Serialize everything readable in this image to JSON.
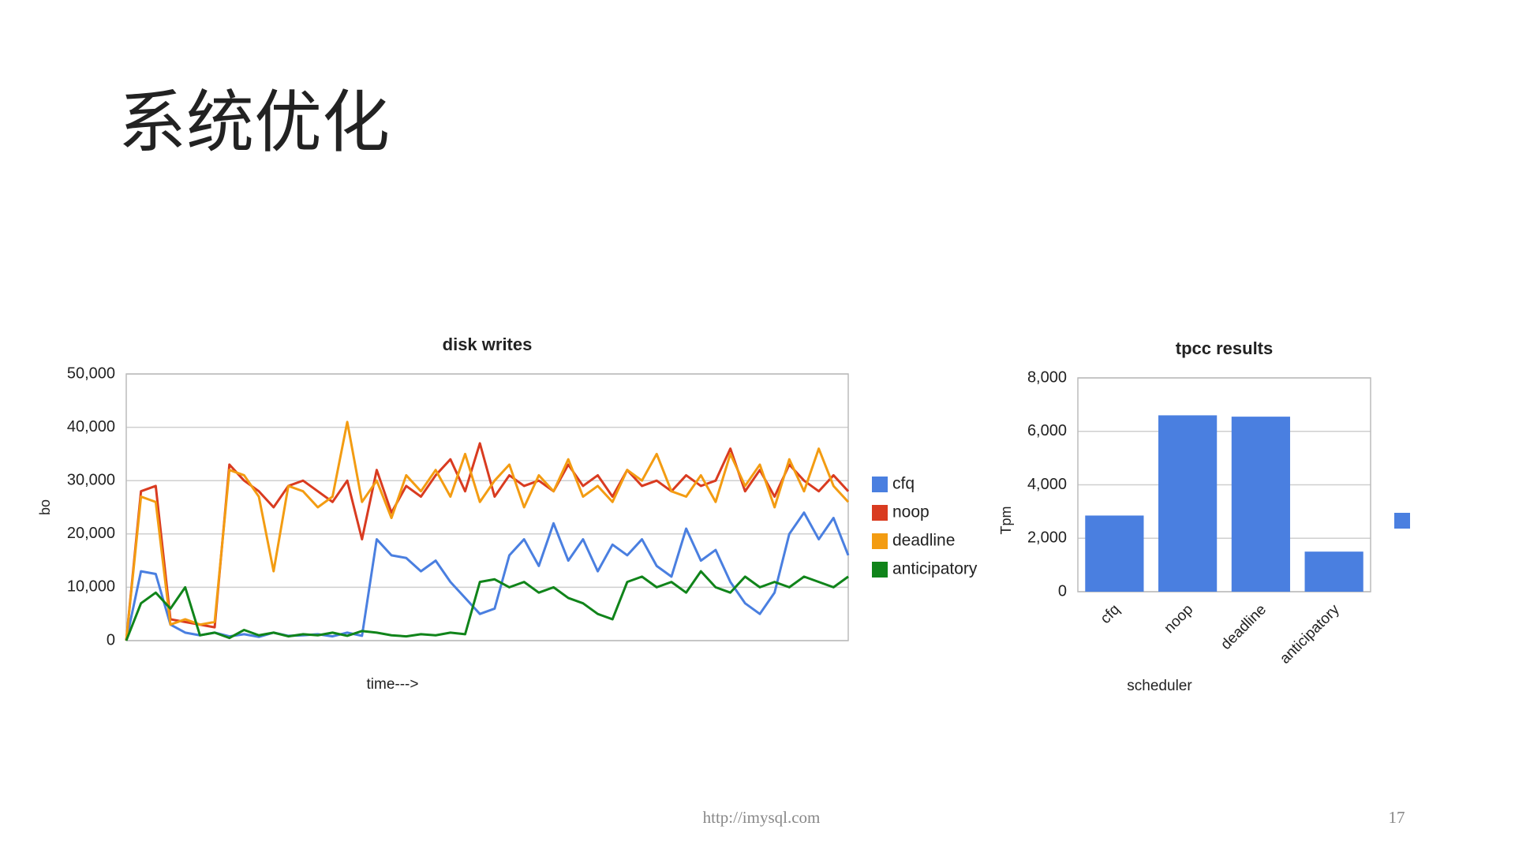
{
  "header": {
    "title": "系统优化"
  },
  "footer": {
    "url": "http://imysql.com",
    "page": "17"
  },
  "chart_data": [
    {
      "type": "line",
      "title": "disk writes",
      "x_label": "time--->",
      "y_label": "bo",
      "categories": [
        null,
        null,
        null,
        null,
        null,
        null,
        null,
        null,
        null,
        null,
        null,
        null,
        null,
        null,
        null,
        null,
        null,
        null,
        null,
        null,
        null,
        null,
        null,
        null,
        null,
        null,
        null,
        null,
        null,
        null,
        null,
        null,
        null,
        null,
        null,
        null,
        null,
        null,
        null,
        null,
        null,
        null,
        null,
        null,
        null,
        null,
        null,
        null,
        null,
        null
      ],
      "ylim": [
        0,
        50000
      ],
      "yticks": [
        0,
        {
          "value": 10000,
          "label": "10,000"
        },
        {
          "value": 20000,
          "label": "20,000"
        },
        {
          "value": 30000,
          "label": "30,000"
        },
        {
          "value": 40000,
          "label": "40,000"
        },
        {
          "value": 50000,
          "label": "50,000"
        }
      ],
      "grid": true,
      "legend": "right",
      "series": [
        {
          "name": "cfq",
          "color": "#4a7fe0",
          "values": [
            0,
            13000,
            12500,
            3000,
            1500,
            1000,
            1500,
            800,
            1200,
            700,
            1500,
            900,
            1000,
            1200,
            800,
            1500,
            900,
            19000,
            16000,
            15500,
            13000,
            15000,
            11000,
            8000,
            5000,
            6000,
            16000,
            19000,
            14000,
            22000,
            15000,
            19000,
            13000,
            18000,
            16000,
            19000,
            14000,
            12000,
            21000,
            15000,
            17000,
            11000,
            7000,
            5000,
            9000,
            20000,
            24000,
            19000,
            23000,
            16000
          ]
        },
        {
          "name": "noop",
          "color": "#d93b20",
          "values": [
            0,
            28000,
            29000,
            4000,
            3500,
            3000,
            2500,
            33000,
            30000,
            28000,
            25000,
            29000,
            30000,
            28000,
            26000,
            30000,
            19000,
            32000,
            24000,
            29000,
            27000,
            31000,
            34000,
            28000,
            37000,
            27000,
            31000,
            29000,
            30000,
            28000,
            33000,
            29000,
            31000,
            27000,
            32000,
            29000,
            30000,
            28000,
            31000,
            29000,
            30000,
            36000,
            28000,
            32000,
            27000,
            33000,
            30000,
            28000,
            31000,
            28000
          ]
        },
        {
          "name": "deadline",
          "color": "#f39c12",
          "values": [
            0,
            27000,
            26000,
            3000,
            4000,
            3000,
            3500,
            32000,
            31000,
            27000,
            13000,
            29000,
            28000,
            25000,
            27000,
            41000,
            26000,
            30000,
            23000,
            31000,
            28000,
            32000,
            27000,
            35000,
            26000,
            30000,
            33000,
            25000,
            31000,
            28000,
            34000,
            27000,
            29000,
            26000,
            32000,
            30000,
            35000,
            28000,
            27000,
            31000,
            26000,
            35000,
            29000,
            33000,
            25000,
            34000,
            28000,
            36000,
            29000,
            26000
          ]
        },
        {
          "name": "anticipatory",
          "color": "#10841a",
          "values": [
            0,
            7000,
            9000,
            6000,
            10000,
            1000,
            1500,
            500,
            2000,
            1000,
            1500,
            800,
            1200,
            1000,
            1500,
            900,
            1800,
            1500,
            1000,
            800,
            1200,
            1000,
            1500,
            1200,
            11000,
            11500,
            10000,
            11000,
            9000,
            10000,
            8000,
            7000,
            5000,
            4000,
            11000,
            12000,
            10000,
            11000,
            9000,
            13000,
            10000,
            9000,
            12000,
            10000,
            11000,
            10000,
            12000,
            11000,
            10000,
            12000
          ]
        }
      ]
    },
    {
      "type": "bar",
      "title": "tpcc results",
      "x_label": "scheduler",
      "y_label": "Tpm",
      "categories": [
        "cfq",
        "noop",
        "deadline",
        "anticipatory"
      ],
      "ylim": [
        0,
        8000
      ],
      "yticks": [
        0,
        {
          "value": 2000,
          "label": "2,000"
        },
        {
          "value": 4000,
          "label": "4,000"
        },
        {
          "value": 6000,
          "label": "6,000"
        },
        {
          "value": 8000,
          "label": "8,000"
        }
      ],
      "grid": true,
      "legend": "right",
      "series": [
        {
          "color": "#4a7fe0",
          "values": [
            2850,
            6600,
            6550,
            1500
          ]
        }
      ]
    }
  ]
}
